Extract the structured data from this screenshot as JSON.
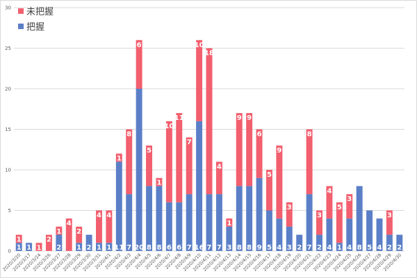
{
  "chart_data": {
    "type": "bar",
    "stacked": true,
    "title": "",
    "xlabel": "",
    "ylabel": "",
    "ylim": [
      0,
      30
    ],
    "yticks": [
      0,
      5,
      10,
      15,
      20,
      25,
      30
    ],
    "grid": true,
    "legend_position": "top-left",
    "categories": [
      "2020/3/20",
      "2020/3/17",
      "2020/3/24",
      "2020/3/26",
      "2020/3/27",
      "2020/3/28",
      "2020/3/29",
      "2020/3/30",
      "2020/3/31",
      "2020/4/1",
      "2020/4/2",
      "2020/4/3",
      "2020/4/4",
      "2020/4/5",
      "2020/4/6",
      "2020/4/7",
      "2020/4/8",
      "2020/4/9",
      "2020/4/10",
      "2020/4/11",
      "2020/4/12",
      "2020/4/13",
      "2020/4/14",
      "2020/4/15",
      "2020/4/16",
      "2020/4/17",
      "2020/4/18",
      "2020/4/19",
      "2020/4/20",
      "2020/4/21",
      "2020/4/22",
      "2020/4/23",
      "2020/4/24",
      "2020/4/25",
      "2020/4/26",
      "2020/4/27",
      "2020/4/28",
      "2020/4/29",
      "2020/4/30"
    ],
    "series": [
      {
        "name": "把握",
        "color": "#5b7fc7",
        "values": [
          1,
          1,
          0,
          0,
          2,
          0,
          1,
          2,
          1,
          1,
          11,
          7,
          20,
          8,
          8,
          6,
          6,
          7,
          16,
          7,
          7,
          3,
          8,
          8,
          9,
          5,
          4,
          3,
          2,
          7,
          2,
          4,
          1,
          4,
          8,
          5,
          4,
          2,
          2
        ]
      },
      {
        "name": "未把握",
        "color": "#f25f6e",
        "values": [
          1,
          0,
          1,
          2,
          1,
          4,
          2,
          0,
          4,
          4,
          1,
          8,
          6,
          5,
          1,
          10,
          11,
          7,
          10,
          18,
          4,
          1,
          9,
          9,
          6,
          5,
          9,
          3,
          0,
          8,
          3,
          4,
          5,
          3,
          0,
          0,
          0,
          3,
          0
        ]
      }
    ],
    "legend_order": [
      "未把握",
      "把握"
    ]
  }
}
